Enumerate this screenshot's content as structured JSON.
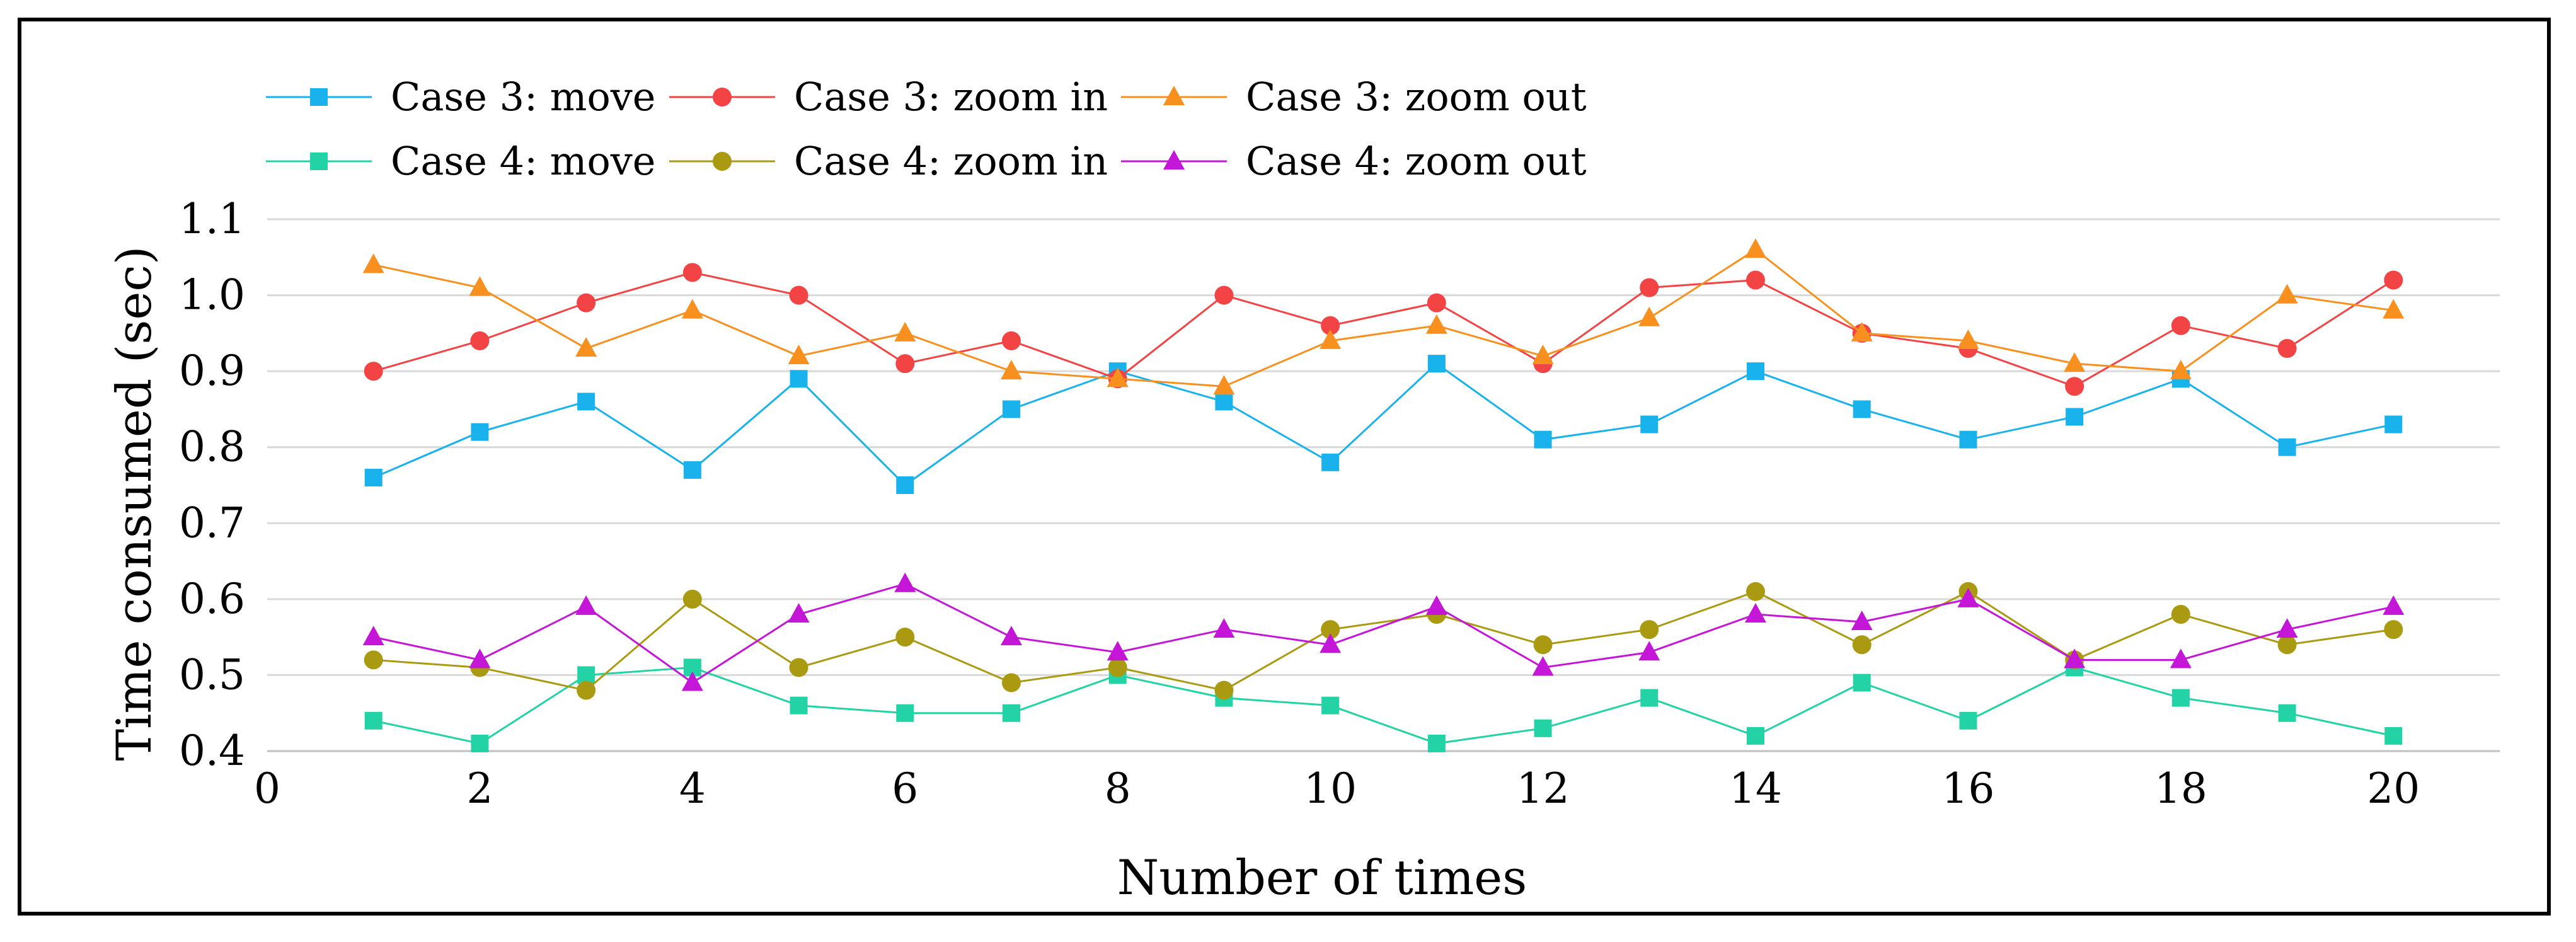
{
  "chart_data": {
    "type": "line",
    "title": "",
    "xlabel": "Number of times",
    "ylabel": "Time consumed (sec)",
    "xlim": [
      0,
      21
    ],
    "ylim": [
      0.4,
      1.1
    ],
    "x_ticks": [
      0,
      2,
      4,
      6,
      8,
      10,
      12,
      14,
      16,
      18,
      20
    ],
    "y_ticks": [
      0.4,
      0.5,
      0.6,
      0.7,
      0.8,
      0.9,
      1.0,
      1.1
    ],
    "y_tick_labels": [
      "0.4",
      "0.5",
      "0.6",
      "0.7",
      "0.8",
      "0.9",
      "1.0",
      "1.1"
    ],
    "grid": "horizontal",
    "legend_position": "top-left",
    "x": [
      1,
      2,
      3,
      4,
      5,
      6,
      7,
      8,
      9,
      10,
      11,
      12,
      13,
      14,
      15,
      16,
      17,
      18,
      19,
      20
    ],
    "series": [
      {
        "name": "Case 3: move",
        "color": "#1ab2ec",
        "marker": "square",
        "values": [
          0.76,
          0.82,
          0.86,
          0.77,
          0.89,
          0.75,
          0.85,
          0.9,
          0.86,
          0.78,
          0.91,
          0.81,
          0.83,
          0.9,
          0.85,
          0.81,
          0.84,
          0.89,
          0.8,
          0.83
        ]
      },
      {
        "name": "Case 3: zoom in",
        "color": "#f24445",
        "marker": "circle",
        "values": [
          0.9,
          0.94,
          0.99,
          1.03,
          1.0,
          0.91,
          0.94,
          0.89,
          1.0,
          0.96,
          0.99,
          0.91,
          1.01,
          1.02,
          0.95,
          0.93,
          0.88,
          0.96,
          0.93,
          1.02
        ]
      },
      {
        "name": "Case 3: zoom out",
        "color": "#f7901e",
        "marker": "triangle",
        "values": [
          1.04,
          1.01,
          0.93,
          0.98,
          0.92,
          0.95,
          0.9,
          0.89,
          0.88,
          0.94,
          0.96,
          0.92,
          0.97,
          1.06,
          0.95,
          0.94,
          0.91,
          0.9,
          1.0,
          0.98
        ]
      },
      {
        "name": "Case 4: move",
        "color": "#23d3a5",
        "marker": "square",
        "values": [
          0.44,
          0.41,
          0.5,
          0.51,
          0.46,
          0.45,
          0.45,
          0.5,
          0.47,
          0.46,
          0.41,
          0.43,
          0.47,
          0.42,
          0.49,
          0.44,
          0.51,
          0.47,
          0.45,
          0.42
        ]
      },
      {
        "name": "Case 4: zoom in",
        "color": "#aa9a12",
        "marker": "circle",
        "values": [
          0.52,
          0.51,
          0.48,
          0.6,
          0.51,
          0.55,
          0.49,
          0.51,
          0.48,
          0.56,
          0.58,
          0.54,
          0.56,
          0.61,
          0.54,
          0.61,
          0.52,
          0.58,
          0.54,
          0.56
        ]
      },
      {
        "name": "Case 4: zoom out",
        "color": "#c316d6",
        "marker": "triangle",
        "values": [
          0.55,
          0.52,
          0.59,
          0.49,
          0.58,
          0.62,
          0.55,
          0.53,
          0.56,
          0.54,
          0.59,
          0.51,
          0.53,
          0.58,
          0.57,
          0.6,
          0.52,
          0.52,
          0.56,
          0.59
        ]
      }
    ]
  }
}
